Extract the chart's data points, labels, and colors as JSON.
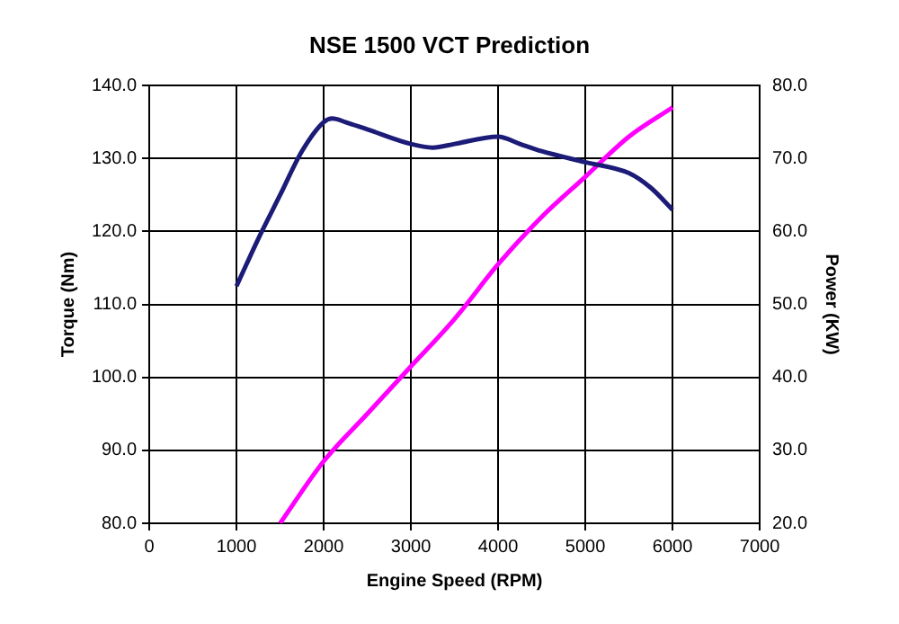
{
  "chart_data": {
    "type": "line",
    "title": "NSE 1500 VCT Prediction",
    "xlabel": "Engine Speed (RPM)",
    "ylabel": "Torque (Nm)",
    "y2label": "Power (KW)",
    "series": [
      {
        "color": "#1c1c78",
        "x": [
          1000,
          1250,
          1500,
          1750,
          2000,
          2100,
          2250,
          2500,
          3000,
          3250,
          3500,
          4000,
          4250,
          4500,
          5000,
          5500,
          5750,
          6000
        ],
        "values": [
          112.5,
          119,
          125,
          131,
          135,
          135.5,
          135,
          134,
          132,
          131.5,
          132,
          133,
          132,
          131,
          129.5,
          128,
          126,
          123
        ]
      },
      {
        "color": "#ff00ff",
        "axis": "y2",
        "x": [
          1500,
          2000,
          2500,
          3000,
          3500,
          4000,
          4500,
          5000,
          5500,
          6000
        ],
        "values": [
          20,
          28.5,
          35,
          41.5,
          48,
          55.5,
          62,
          67.5,
          73,
          77
        ]
      }
    ],
    "xlim": [
      0,
      7000
    ],
    "xticks": [
      0,
      1000,
      2000,
      3000,
      4000,
      5000,
      6000,
      7000
    ],
    "ylim": [
      80,
      140
    ],
    "yticks": [
      {
        "value": 80,
        "label": "80.0"
      },
      {
        "value": 90,
        "label": "90.0"
      },
      {
        "value": 100,
        "label": "100.0"
      },
      {
        "value": 110,
        "label": "110.0"
      },
      {
        "value": 120,
        "label": "120.0"
      },
      {
        "value": 130,
        "label": "130.0"
      },
      {
        "value": 140,
        "label": "140.0"
      }
    ],
    "y2lim": [
      20,
      80
    ],
    "y2ticks": [
      {
        "value": 20,
        "label": "20.0"
      },
      {
        "value": 30,
        "label": "30.0"
      },
      {
        "value": 40,
        "label": "40.0"
      },
      {
        "value": 50,
        "label": "50.0"
      },
      {
        "value": 60,
        "label": "60.0"
      },
      {
        "value": 70,
        "label": "70.0"
      },
      {
        "value": 80,
        "label": "80.0"
      }
    ],
    "grid": true,
    "legend": false,
    "marker": "none",
    "line_style": "solid"
  }
}
